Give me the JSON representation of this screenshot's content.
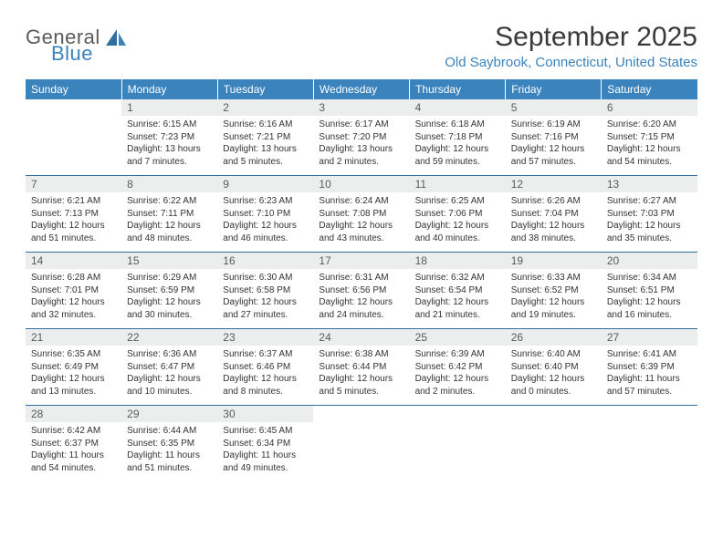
{
  "brand": {
    "line1": "General",
    "line2": "Blue"
  },
  "title": "September 2025",
  "location": "Old Saybrook, Connecticut, United States",
  "colors": {
    "header_bg": "#3b83bd",
    "header_text": "#ffffff",
    "daynum_bg": "#eceeee",
    "rule": "#2f6ea0",
    "brand_blue": "#3b83bd",
    "text": "#333333"
  },
  "dow": [
    "Sunday",
    "Monday",
    "Tuesday",
    "Wednesday",
    "Thursday",
    "Friday",
    "Saturday"
  ],
  "weeks": [
    [
      {
        "n": "",
        "lines": []
      },
      {
        "n": "1",
        "lines": [
          "Sunrise: 6:15 AM",
          "Sunset: 7:23 PM",
          "Daylight: 13 hours and 7 minutes."
        ]
      },
      {
        "n": "2",
        "lines": [
          "Sunrise: 6:16 AM",
          "Sunset: 7:21 PM",
          "Daylight: 13 hours and 5 minutes."
        ]
      },
      {
        "n": "3",
        "lines": [
          "Sunrise: 6:17 AM",
          "Sunset: 7:20 PM",
          "Daylight: 13 hours and 2 minutes."
        ]
      },
      {
        "n": "4",
        "lines": [
          "Sunrise: 6:18 AM",
          "Sunset: 7:18 PM",
          "Daylight: 12 hours and 59 minutes."
        ]
      },
      {
        "n": "5",
        "lines": [
          "Sunrise: 6:19 AM",
          "Sunset: 7:16 PM",
          "Daylight: 12 hours and 57 minutes."
        ]
      },
      {
        "n": "6",
        "lines": [
          "Sunrise: 6:20 AM",
          "Sunset: 7:15 PM",
          "Daylight: 12 hours and 54 minutes."
        ]
      }
    ],
    [
      {
        "n": "7",
        "lines": [
          "Sunrise: 6:21 AM",
          "Sunset: 7:13 PM",
          "Daylight: 12 hours and 51 minutes."
        ]
      },
      {
        "n": "8",
        "lines": [
          "Sunrise: 6:22 AM",
          "Sunset: 7:11 PM",
          "Daylight: 12 hours and 48 minutes."
        ]
      },
      {
        "n": "9",
        "lines": [
          "Sunrise: 6:23 AM",
          "Sunset: 7:10 PM",
          "Daylight: 12 hours and 46 minutes."
        ]
      },
      {
        "n": "10",
        "lines": [
          "Sunrise: 6:24 AM",
          "Sunset: 7:08 PM",
          "Daylight: 12 hours and 43 minutes."
        ]
      },
      {
        "n": "11",
        "lines": [
          "Sunrise: 6:25 AM",
          "Sunset: 7:06 PM",
          "Daylight: 12 hours and 40 minutes."
        ]
      },
      {
        "n": "12",
        "lines": [
          "Sunrise: 6:26 AM",
          "Sunset: 7:04 PM",
          "Daylight: 12 hours and 38 minutes."
        ]
      },
      {
        "n": "13",
        "lines": [
          "Sunrise: 6:27 AM",
          "Sunset: 7:03 PM",
          "Daylight: 12 hours and 35 minutes."
        ]
      }
    ],
    [
      {
        "n": "14",
        "lines": [
          "Sunrise: 6:28 AM",
          "Sunset: 7:01 PM",
          "Daylight: 12 hours and 32 minutes."
        ]
      },
      {
        "n": "15",
        "lines": [
          "Sunrise: 6:29 AM",
          "Sunset: 6:59 PM",
          "Daylight: 12 hours and 30 minutes."
        ]
      },
      {
        "n": "16",
        "lines": [
          "Sunrise: 6:30 AM",
          "Sunset: 6:58 PM",
          "Daylight: 12 hours and 27 minutes."
        ]
      },
      {
        "n": "17",
        "lines": [
          "Sunrise: 6:31 AM",
          "Sunset: 6:56 PM",
          "Daylight: 12 hours and 24 minutes."
        ]
      },
      {
        "n": "18",
        "lines": [
          "Sunrise: 6:32 AM",
          "Sunset: 6:54 PM",
          "Daylight: 12 hours and 21 minutes."
        ]
      },
      {
        "n": "19",
        "lines": [
          "Sunrise: 6:33 AM",
          "Sunset: 6:52 PM",
          "Daylight: 12 hours and 19 minutes."
        ]
      },
      {
        "n": "20",
        "lines": [
          "Sunrise: 6:34 AM",
          "Sunset: 6:51 PM",
          "Daylight: 12 hours and 16 minutes."
        ]
      }
    ],
    [
      {
        "n": "21",
        "lines": [
          "Sunrise: 6:35 AM",
          "Sunset: 6:49 PM",
          "Daylight: 12 hours and 13 minutes."
        ]
      },
      {
        "n": "22",
        "lines": [
          "Sunrise: 6:36 AM",
          "Sunset: 6:47 PM",
          "Daylight: 12 hours and 10 minutes."
        ]
      },
      {
        "n": "23",
        "lines": [
          "Sunrise: 6:37 AM",
          "Sunset: 6:46 PM",
          "Daylight: 12 hours and 8 minutes."
        ]
      },
      {
        "n": "24",
        "lines": [
          "Sunrise: 6:38 AM",
          "Sunset: 6:44 PM",
          "Daylight: 12 hours and 5 minutes."
        ]
      },
      {
        "n": "25",
        "lines": [
          "Sunrise: 6:39 AM",
          "Sunset: 6:42 PM",
          "Daylight: 12 hours and 2 minutes."
        ]
      },
      {
        "n": "26",
        "lines": [
          "Sunrise: 6:40 AM",
          "Sunset: 6:40 PM",
          "Daylight: 12 hours and 0 minutes."
        ]
      },
      {
        "n": "27",
        "lines": [
          "Sunrise: 6:41 AM",
          "Sunset: 6:39 PM",
          "Daylight: 11 hours and 57 minutes."
        ]
      }
    ],
    [
      {
        "n": "28",
        "lines": [
          "Sunrise: 6:42 AM",
          "Sunset: 6:37 PM",
          "Daylight: 11 hours and 54 minutes."
        ]
      },
      {
        "n": "29",
        "lines": [
          "Sunrise: 6:44 AM",
          "Sunset: 6:35 PM",
          "Daylight: 11 hours and 51 minutes."
        ]
      },
      {
        "n": "30",
        "lines": [
          "Sunrise: 6:45 AM",
          "Sunset: 6:34 PM",
          "Daylight: 11 hours and 49 minutes."
        ]
      },
      {
        "n": "",
        "lines": []
      },
      {
        "n": "",
        "lines": []
      },
      {
        "n": "",
        "lines": []
      },
      {
        "n": "",
        "lines": []
      }
    ]
  ]
}
